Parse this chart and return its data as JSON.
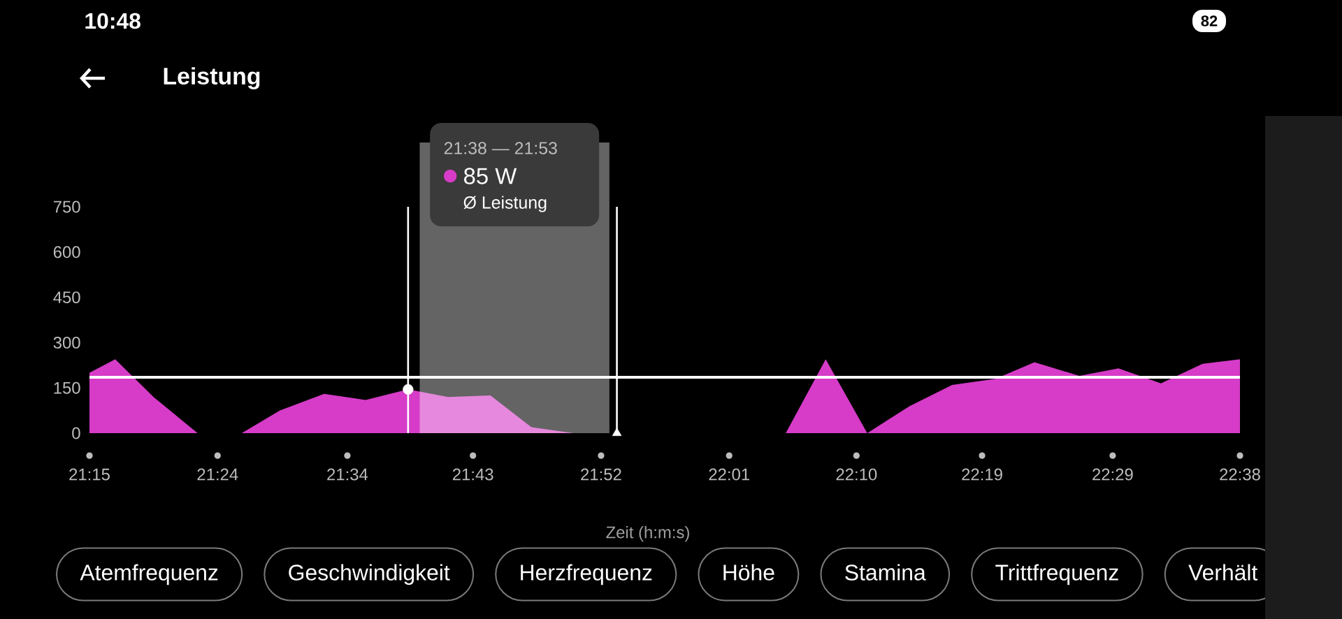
{
  "chart_data": {
    "type": "area",
    "title": "Leistung",
    "xlabel": "Zeit (h:m:s)",
    "xlim": [
      21.25,
      22.633
    ],
    "xticks": [
      {
        "value": 21.25,
        "label": "21:15"
      },
      {
        "value": 21.404,
        "label": "21:24"
      },
      {
        "value": 21.56,
        "label": "21:34"
      },
      {
        "value": 21.711,
        "label": "21:43"
      },
      {
        "value": 21.865,
        "label": "21:52"
      },
      {
        "value": 22.019,
        "label": "22:01"
      },
      {
        "value": 22.172,
        "label": "22:10"
      },
      {
        "value": 22.323,
        "label": "22:19"
      },
      {
        "value": 22.48,
        "label": "22:29"
      },
      {
        "value": 22.633,
        "label": "22:38"
      }
    ],
    "ylim": [
      0,
      750
    ],
    "yticks": [
      0,
      150,
      300,
      450,
      600,
      750
    ],
    "series": [
      {
        "color": "#d63cc8",
        "x": [
          21.25,
          21.281,
          21.327,
          21.38,
          21.433,
          21.479,
          21.532,
          21.582,
          21.633,
          21.681,
          21.732,
          21.781,
          21.832,
          22.087,
          22.135,
          22.185,
          22.236,
          22.287,
          22.339,
          22.386,
          22.44,
          22.487,
          22.538,
          22.588,
          22.633
        ],
        "values": [
          200,
          245,
          120,
          0,
          0,
          75,
          130,
          110,
          145,
          120,
          125,
          20,
          0,
          0,
          245,
          0,
          90,
          160,
          180,
          235,
          190,
          215,
          165,
          230,
          245
        ]
      },
      {
        "type": "scatter",
        "marker": "circle",
        "color": "#ffffff",
        "x": [
          21.633
        ],
        "values": [
          145
        ]
      },
      {
        "type": "scatter",
        "marker": "triangle",
        "color": "#ffffff",
        "x": [
          21.884
        ],
        "values": [
          0
        ]
      }
    ],
    "ref_lines": [
      {
        "axis": "y",
        "value": 185,
        "color": "#ffffff"
      },
      {
        "axis": "x",
        "value": 21.633,
        "color": "#ffffff"
      },
      {
        "axis": "x",
        "value": 21.884,
        "color": "#ffffff"
      }
    ],
    "bands": [
      {
        "axis": "x",
        "from": 21.647,
        "to": 21.875,
        "label": "21:38 — 21:53",
        "color": "#646464"
      }
    ],
    "annotations": [
      "85 W",
      "Ø Leistung",
      "Atemfrequenz",
      "Geschwindigkeit",
      "Herzfrequenz",
      "Höhe",
      "Stamina",
      "Trittfrequenz",
      "Verhält",
      "10:48",
      "82"
    ]
  }
}
